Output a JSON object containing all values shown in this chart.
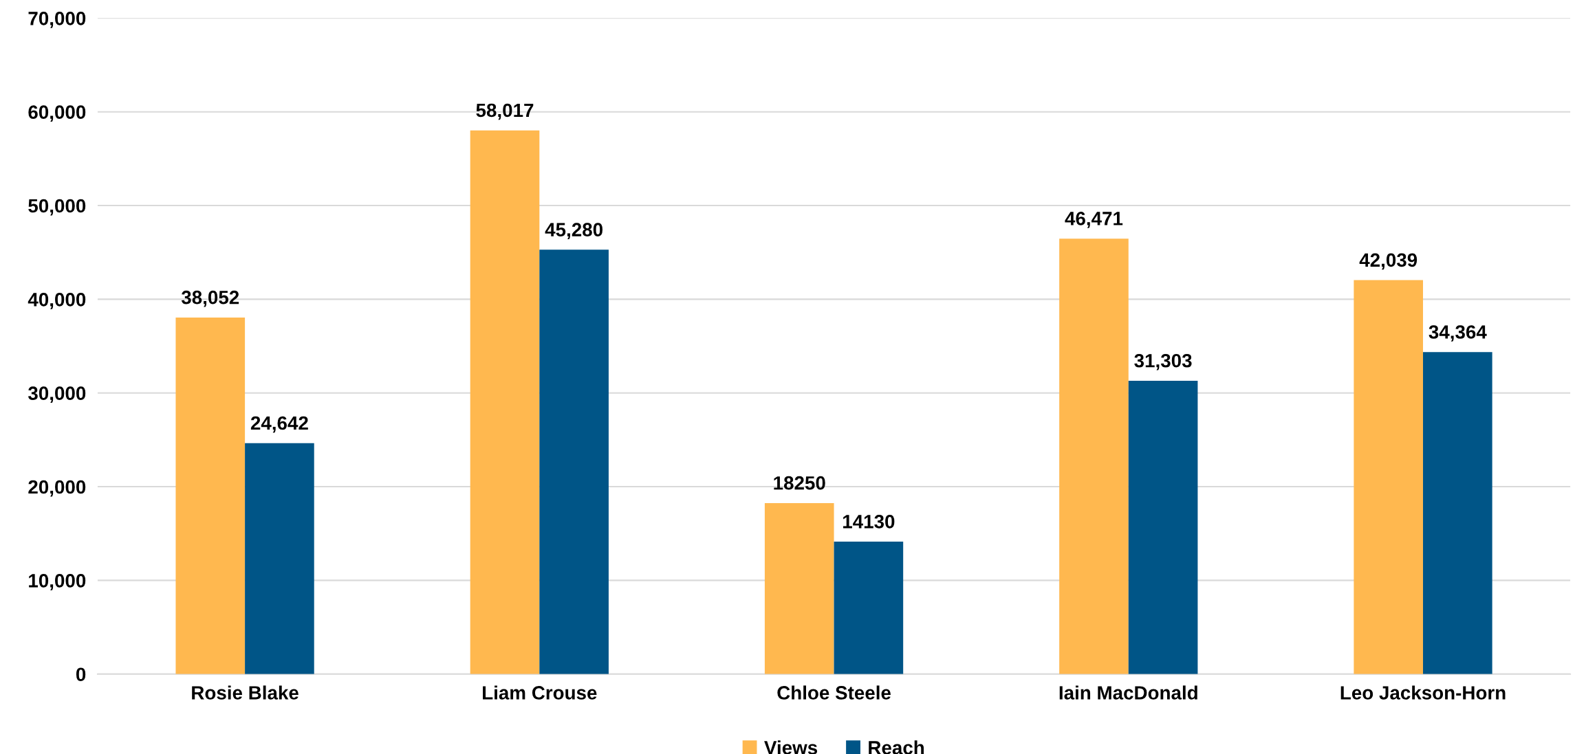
{
  "chart_data": {
    "type": "bar",
    "categories": [
      "Rosie Blake",
      "Liam Crouse",
      "Chloe Steele",
      "Iain MacDonald",
      "Leo Jackson-Horn"
    ],
    "series": [
      {
        "name": "Views",
        "color": "#ffb84f",
        "values": [
          38052,
          58017,
          18250,
          46471,
          42039
        ],
        "value_labels": [
          "38,052",
          "58,017",
          "18250",
          "46,471",
          "42,039"
        ]
      },
      {
        "name": "Reach",
        "color": "#005587",
        "values": [
          24642,
          45280,
          14130,
          31303,
          34364
        ],
        "value_labels": [
          "24,642",
          "45,280",
          "14130",
          "31,303",
          "34,364"
        ]
      }
    ],
    "ylim": [
      0,
      70000
    ],
    "yticks": [
      {
        "value": 0,
        "label": "0"
      },
      {
        "value": 10000,
        "label": "10,000"
      },
      {
        "value": 20000,
        "label": "20,000"
      },
      {
        "value": 30000,
        "label": "30,000"
      },
      {
        "value": 40000,
        "label": "40,000"
      },
      {
        "value": 50000,
        "label": "50,000"
      },
      {
        "value": 60000,
        "label": "60,000"
      },
      {
        "value": 70000,
        "label": "70,000"
      }
    ],
    "grid": "y",
    "legend": "bottom"
  }
}
